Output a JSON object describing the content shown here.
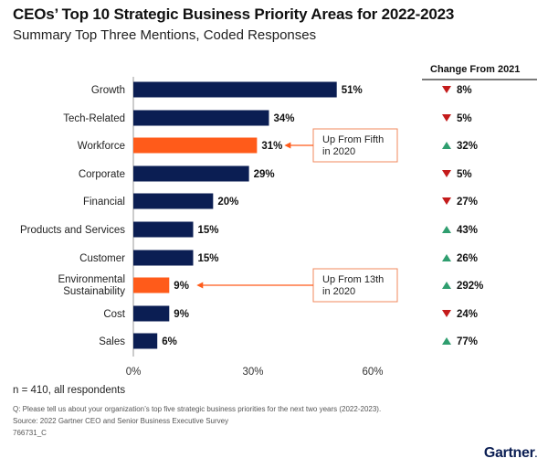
{
  "header": {
    "title": "CEOs’ Top 10 Strategic Business Priority Areas for 2022-2023",
    "subtitle": "Summary Top Three Mentions, Coded Responses"
  },
  "change_header": "Change From 2021",
  "chart_data": {
    "type": "bar",
    "orientation": "horizontal",
    "categories": [
      "Growth",
      "Tech-Related",
      "Workforce",
      "Corporate",
      "Financial",
      "Products and Services",
      "Customer",
      "Environmental Sustainability",
      "Cost",
      "Sales"
    ],
    "values": [
      51,
      34,
      31,
      29,
      20,
      15,
      15,
      9,
      9,
      6
    ],
    "value_labels": [
      "51%",
      "34%",
      "31%",
      "29%",
      "20%",
      "15%",
      "15%",
      "9%",
      "9%",
      "6%"
    ],
    "highlighted": [
      "Workforce",
      "Environmental Sustainability"
    ],
    "xlim": [
      0,
      60
    ],
    "x_ticks": [
      "0%",
      "30%",
      "60%"
    ],
    "colors": {
      "default": "#0b1e53",
      "highlight": "#ff5b1a",
      "up": "#2f9e6f",
      "down": "#c41b1b"
    },
    "change_from_2021": [
      {
        "direction": "down",
        "label": "8%"
      },
      {
        "direction": "down",
        "label": "5%"
      },
      {
        "direction": "up",
        "label": "32%"
      },
      {
        "direction": "down",
        "label": "5%"
      },
      {
        "direction": "down",
        "label": "27%"
      },
      {
        "direction": "up",
        "label": "43%"
      },
      {
        "direction": "up",
        "label": "26%"
      },
      {
        "direction": "up",
        "label": "292%"
      },
      {
        "direction": "down",
        "label": "24%"
      },
      {
        "direction": "up",
        "label": "77%"
      }
    ],
    "annotations": [
      {
        "category": "Workforce",
        "text": [
          "Up From Fifth",
          "in 2020"
        ]
      },
      {
        "category": "Environmental Sustainability",
        "text": [
          "Up From 13th",
          "in 2020"
        ]
      }
    ]
  },
  "notes": {
    "respondents": "n = 410, all respondents",
    "question": "Q: Please tell us about your organization’s top five strategic business priorities for the next two years (2022-2023).",
    "source": "Source: 2022 Gartner CEO and Senior Business Executive Survey",
    "id": "766731_C"
  },
  "brand": "Gartner"
}
